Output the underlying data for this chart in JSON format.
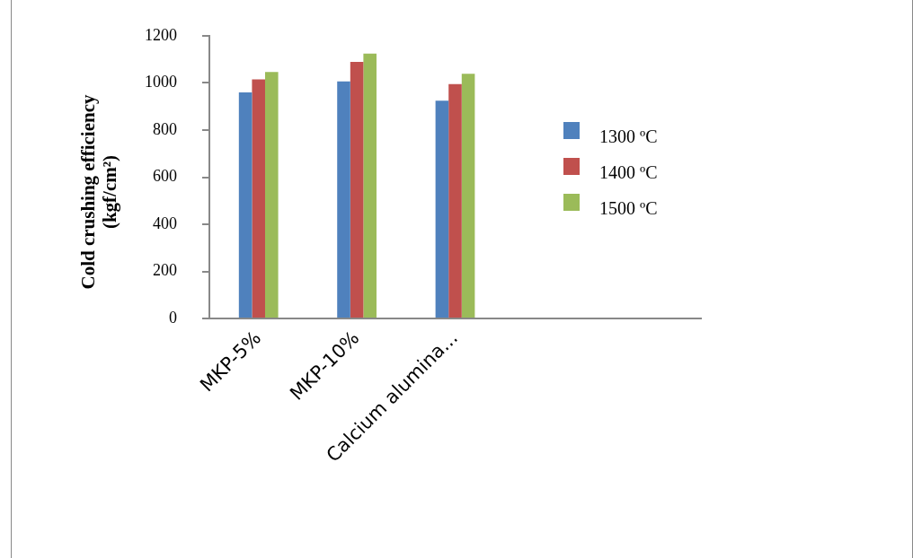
{
  "chart_data": {
    "type": "bar",
    "ylabel": "Cold crushing efficiency (kgf/cm²)",
    "categories": [
      "MKP-5%",
      "MKP-10%",
      "Calcium alumina...",
      null,
      null
    ],
    "series": [
      {
        "name": "1300 ºC",
        "color": "#4f81bd",
        "values": [
          960,
          1007,
          925,
          null,
          null
        ]
      },
      {
        "name": "1400 ºC",
        "color": "#c0504d",
        "values": [
          1015,
          1090,
          995,
          null,
          null
        ]
      },
      {
        "name": "1500 ºC",
        "color": "#9bbb59",
        "values": [
          1047,
          1125,
          1039,
          null,
          null
        ]
      }
    ],
    "ylim": [
      0,
      1200
    ],
    "yticks": [
      0,
      200,
      400,
      600,
      800,
      1000,
      1200
    ],
    "grid": false,
    "legend": "right"
  }
}
